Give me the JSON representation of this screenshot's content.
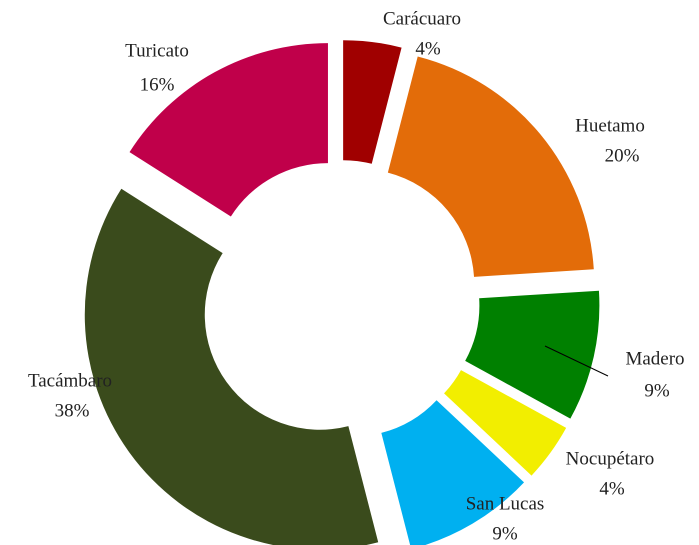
{
  "chart_data": {
    "type": "donut",
    "categories": [
      "Carácuaro",
      "Huetamo",
      "Madero",
      "Nocupétaro",
      "San Lucas",
      "Tacámbaro",
      "Turicato"
    ],
    "values": [
      4,
      20,
      9,
      4,
      9,
      38,
      16
    ],
    "value_labels": [
      "4%",
      "20%",
      "9%",
      "4%",
      "9%",
      "38%",
      "16%"
    ],
    "colors": [
      "#a00000",
      "#e36c09",
      "#008000",
      "#f2ee00",
      "#00b0f0",
      "#3a4b1c",
      "#c0004a"
    ]
  }
}
